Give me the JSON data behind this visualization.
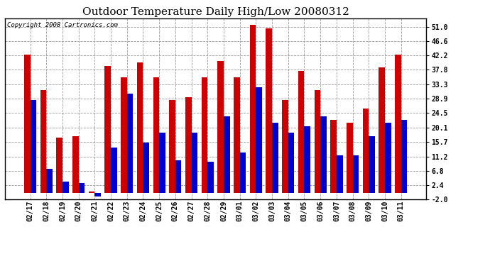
{
  "title": "Outdoor Temperature Daily High/Low 20080312",
  "copyright": "Copyright 2008 Cartronics.com",
  "categories": [
    "02/17",
    "02/18",
    "02/19",
    "02/20",
    "02/21",
    "02/22",
    "02/23",
    "02/24",
    "02/25",
    "02/26",
    "02/27",
    "02/28",
    "02/29",
    "03/01",
    "03/02",
    "03/03",
    "03/04",
    "03/05",
    "03/06",
    "03/07",
    "03/08",
    "03/09",
    "03/10",
    "03/11"
  ],
  "highs": [
    42.5,
    31.5,
    17.0,
    17.5,
    0.5,
    39.0,
    35.5,
    40.0,
    35.5,
    28.5,
    29.5,
    35.5,
    40.5,
    35.5,
    51.5,
    50.5,
    28.5,
    37.5,
    31.5,
    22.5,
    21.5,
    26.0,
    38.5,
    42.5
  ],
  "lows": [
    28.5,
    7.5,
    3.5,
    3.0,
    -1.0,
    14.0,
    30.5,
    15.5,
    18.5,
    10.0,
    18.5,
    9.5,
    23.5,
    12.5,
    32.5,
    21.5,
    18.5,
    20.5,
    23.5,
    11.5,
    11.5,
    17.5,
    21.5,
    22.5
  ],
  "high_color": "#cc0000",
  "low_color": "#0000cc",
  "background_color": "#ffffff",
  "grid_color": "#999999",
  "yticks": [
    -2.0,
    2.4,
    6.8,
    11.2,
    15.7,
    20.1,
    24.5,
    28.9,
    33.3,
    37.8,
    42.2,
    46.6,
    51.0
  ],
  "ylim": [
    -2.0,
    53.5
  ],
  "bar_width": 0.38,
  "title_fontsize": 11,
  "copyright_fontsize": 6.5
}
